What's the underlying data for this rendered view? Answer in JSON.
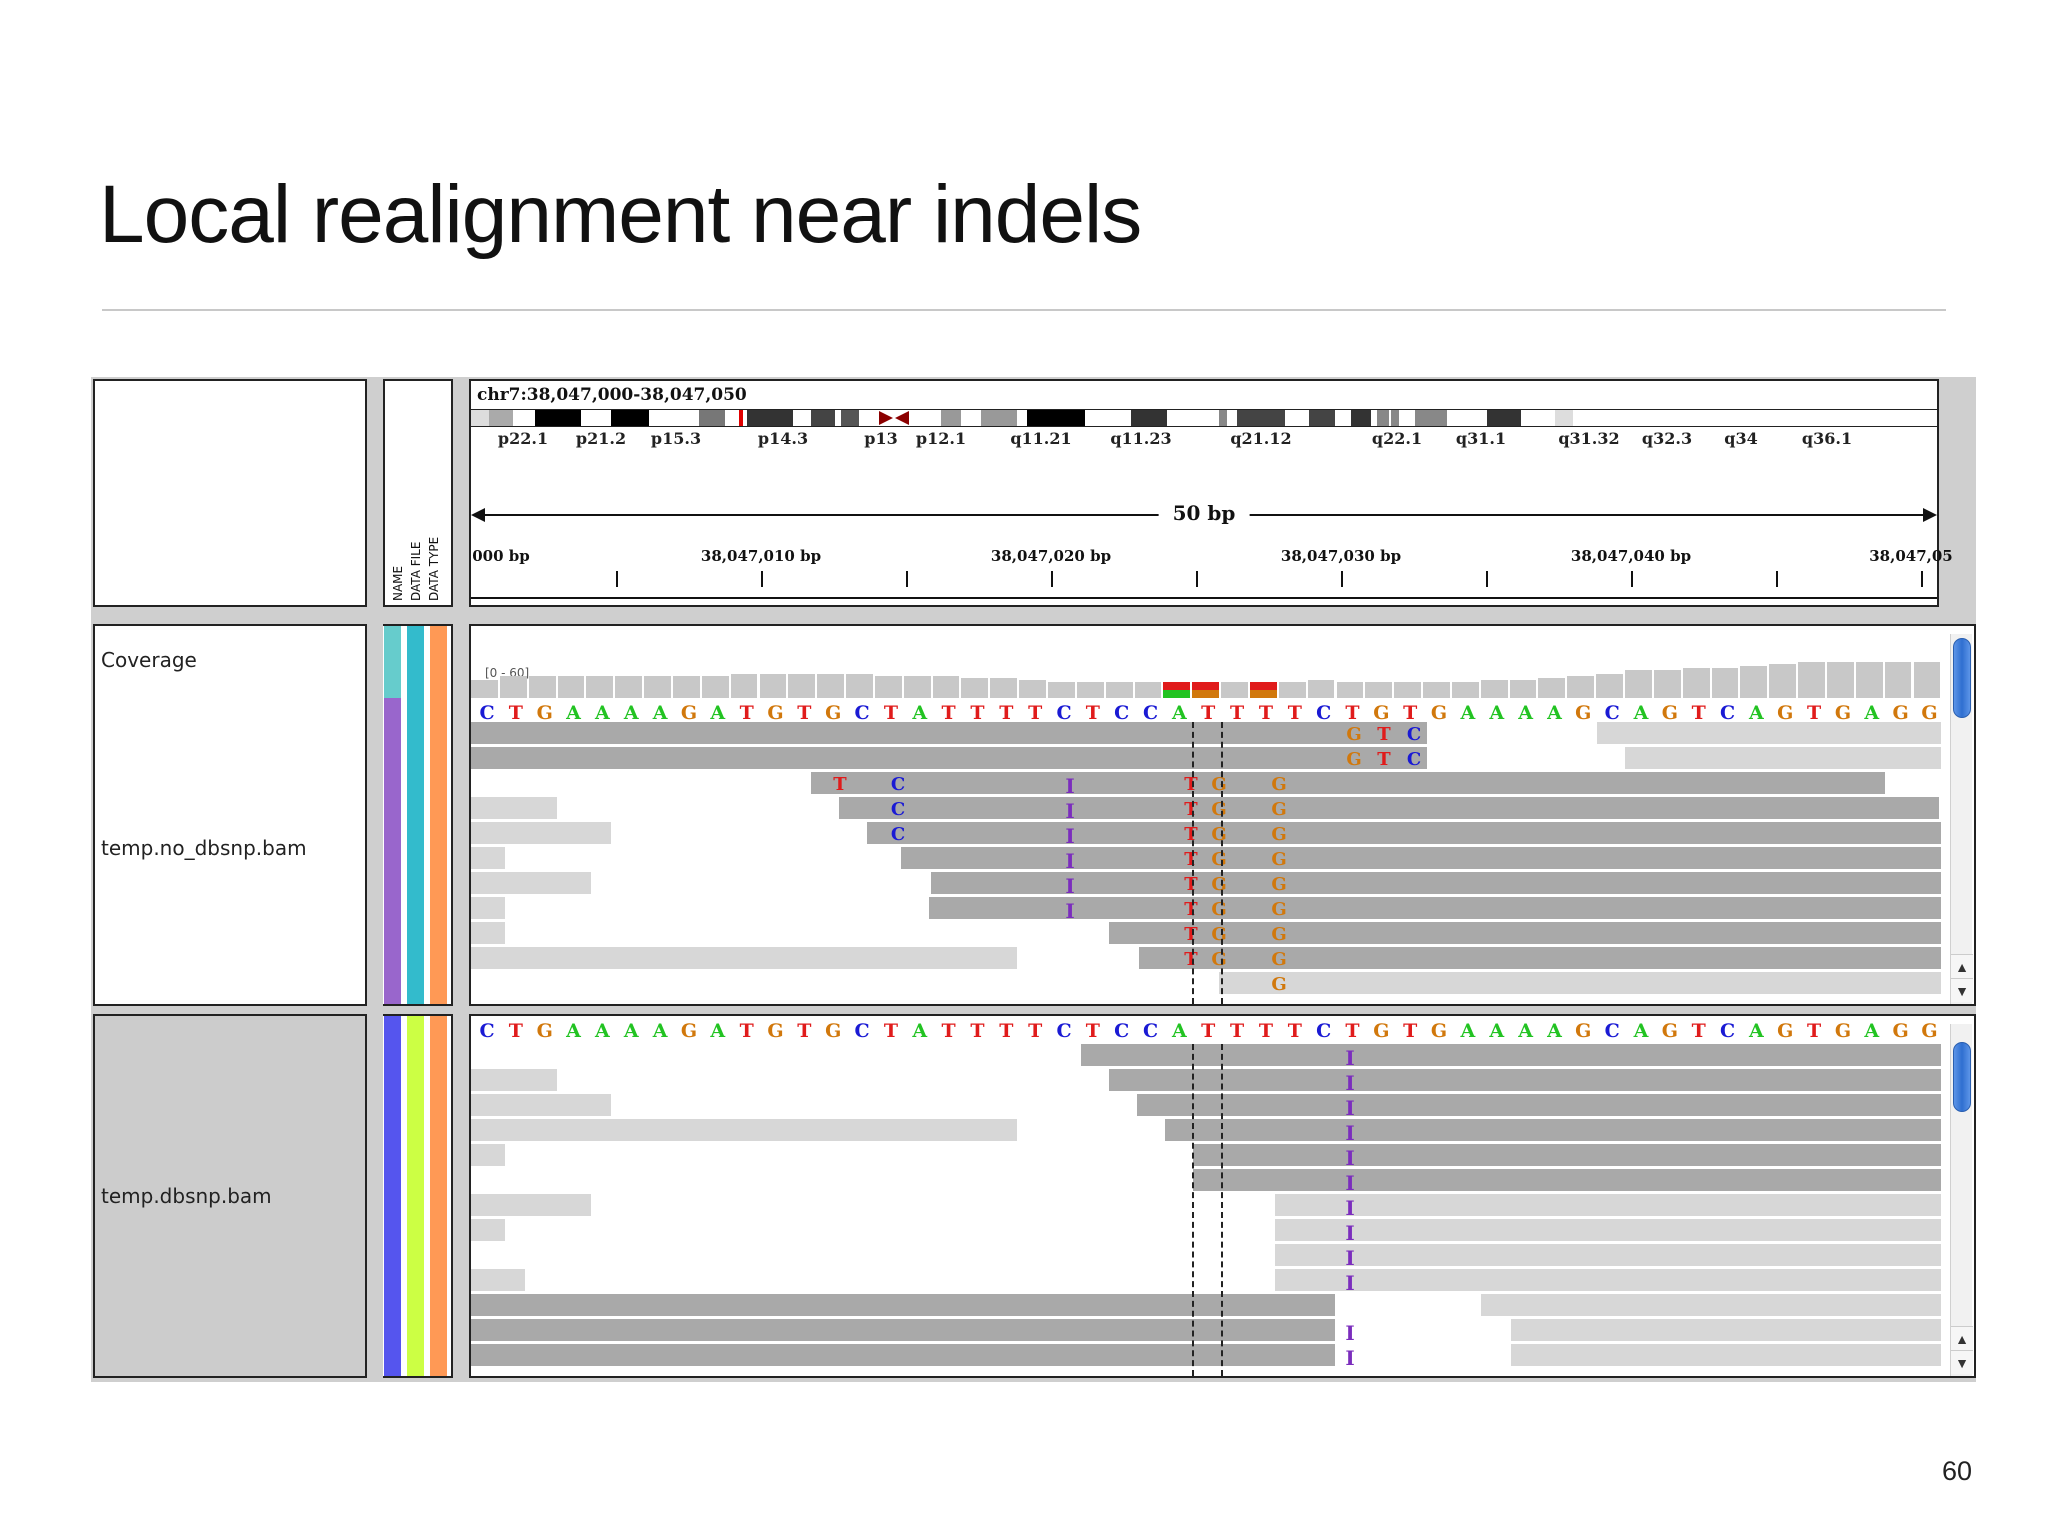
{
  "slide": {
    "title": "Local realignment near indels",
    "page_number": "60"
  },
  "igv": {
    "header": {
      "attribute_labels": [
        "NAME",
        "DATA FILE",
        "DATA TYPE"
      ],
      "locus": "chr7:38,047,000-38,047,050",
      "cytobands": [
        "p22.1",
        "p21.2",
        "p15.3",
        "p14.3",
        "p13",
        "p12.1",
        "q11.21",
        "q11.23",
        "q21.12",
        "q22.1",
        "q31.1",
        "q31.32",
        "q32.3",
        "q34",
        "q36.1"
      ],
      "span_label": "50 bp",
      "ruler_labels": [
        "000 bp",
        "38,047,010 bp",
        "38,047,020 bp",
        "38,047,030 bp",
        "38,047,040 bp",
        "38,047,05"
      ]
    },
    "tracks": {
      "coverage_name": "Coverage",
      "coverage_range": "[0 - 60]",
      "no_dbsnp_name": "temp.no_dbsnp.bam",
      "dbsnp_name": "temp.dbsnp.bam",
      "reference_sequence": "CTGAAAAGATGTGCTATTTTCTCCATTTTCTGTGAAAAGCAGTCAGTGAGG"
    },
    "colors": {
      "A": "#22c322",
      "C": "#1a1ad4",
      "G": "#d1780c",
      "T": "#e01b1b",
      "insertion": "#7b2dbd",
      "read": "#a9a9a9",
      "attr_no_dbsnp": [
        "#9966cc",
        "#33cccc",
        "#ff9955"
      ],
      "attr_dbsnp": [
        "#5555ee",
        "#ccff44",
        "#ff9955"
      ]
    },
    "icons": [
      "scroll-up-icon",
      "scroll-down-icon"
    ]
  }
}
